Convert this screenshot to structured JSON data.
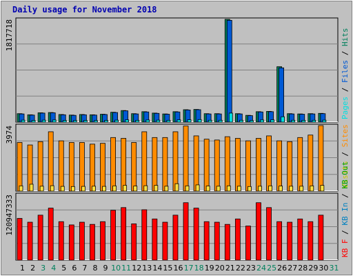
{
  "title": "Daily usage for November 2018",
  "colors": {
    "background": "#c0c0c0",
    "panel": "#c0c0c0",
    "grid": "#808080",
    "title": "#0000b0",
    "hits": "#00805c",
    "files": "#0059d4",
    "pages": "#00e0e0",
    "visits": "#ffe040",
    "sites": "#ff8c00",
    "kbin": "#0080c0",
    "kbout": "#00a000",
    "kbf": "#ff0000",
    "day_weekday": "#000000",
    "day_weekend": "#00805c"
  },
  "chart_data": [
    {
      "type": "bar",
      "panel": "hits-files-pages",
      "ymax_label": "1817718",
      "ylim": [
        0,
        1817718
      ],
      "legend": [
        {
          "text": "Pages",
          "color": "#00e0e0"
        },
        {
          "text": " / ",
          "color": "#000000"
        },
        {
          "text": "Files",
          "color": "#0059d4"
        },
        {
          "text": " / ",
          "color": "#000000"
        },
        {
          "text": "Hits",
          "color": "#00805c"
        }
      ],
      "categories": [
        "1",
        "2",
        "3",
        "4",
        "5",
        "6",
        "7",
        "8",
        "9",
        "10",
        "11",
        "12",
        "13",
        "14",
        "15",
        "16",
        "17",
        "18",
        "19",
        "20",
        "21",
        "22",
        "23",
        "24",
        "25",
        "26",
        "27",
        "28",
        "29",
        "30"
      ],
      "series": [
        {
          "name": "Hits",
          "color": "#00805c",
          "values": [
            150000,
            130000,
            165000,
            170000,
            135000,
            125000,
            135000,
            130000,
            140000,
            175000,
            205000,
            150000,
            185000,
            160000,
            145000,
            185000,
            220000,
            225000,
            150000,
            150000,
            1817718,
            150000,
            120000,
            185000,
            190000,
            980000,
            150000,
            145000,
            150000,
            155000
          ]
        },
        {
          "name": "Files",
          "color": "#0059d4",
          "values": [
            145000,
            125000,
            160000,
            165000,
            130000,
            120000,
            130000,
            125000,
            135000,
            170000,
            200000,
            145000,
            180000,
            155000,
            140000,
            180000,
            215000,
            220000,
            145000,
            145000,
            1800000,
            145000,
            115000,
            180000,
            185000,
            960000,
            145000,
            140000,
            145000,
            150000
          ]
        },
        {
          "name": "Pages",
          "color": "#00e0e0",
          "values": [
            35000,
            30000,
            35000,
            38000,
            30000,
            28000,
            30000,
            28000,
            30000,
            35000,
            40000,
            32000,
            38000,
            35000,
            32000,
            40000,
            42000,
            45000,
            33000,
            33000,
            160000,
            33000,
            28000,
            38000,
            40000,
            95000,
            33000,
            32000,
            33000,
            35000
          ]
        }
      ]
    },
    {
      "type": "bar",
      "panel": "sites-visits",
      "ymax_label": "3974",
      "ylim": [
        0,
        3974
      ],
      "legend": [
        {
          "text": "Visits",
          "color": "#c8c800"
        },
        {
          "text": " / ",
          "color": "#000000"
        },
        {
          "text": "Sites",
          "color": "#ff8c00"
        }
      ],
      "categories": [
        "1",
        "2",
        "3",
        "4",
        "5",
        "6",
        "7",
        "8",
        "9",
        "10",
        "11",
        "12",
        "13",
        "14",
        "15",
        "16",
        "17",
        "18",
        "19",
        "20",
        "21",
        "22",
        "23",
        "24",
        "25",
        "26",
        "27",
        "28",
        "29",
        "30"
      ],
      "series": [
        {
          "name": "Sites",
          "color": "#ff8c00",
          "values": [
            2950,
            2800,
            3000,
            3600,
            3050,
            2950,
            2950,
            2850,
            2900,
            3250,
            3200,
            2950,
            3600,
            3250,
            3250,
            3600,
            3950,
            3350,
            3150,
            3100,
            3300,
            3200,
            3050,
            3200,
            3350,
            3050,
            3000,
            3250,
            3400,
            3974
          ]
        },
        {
          "name": "Visits",
          "color": "#ffe040",
          "values": [
            320,
            420,
            300,
            330,
            290,
            280,
            290,
            300,
            290,
            320,
            350,
            310,
            330,
            350,
            300,
            450,
            320,
            380,
            310,
            300,
            320,
            300,
            280,
            300,
            320,
            310,
            300,
            300,
            320,
            350
          ]
        }
      ]
    },
    {
      "type": "bar",
      "panel": "kbytes",
      "ymax_label": "120947333",
      "ylim": [
        0,
        120947333
      ],
      "legend": [
        {
          "text": "KB F",
          "color": "#ff0000"
        },
        {
          "text": " / ",
          "color": "#000000"
        },
        {
          "text": "KB In",
          "color": "#0080c0"
        },
        {
          "text": " / ",
          "color": "#000000"
        },
        {
          "text": "KB Out",
          "color": "#00a000"
        }
      ],
      "categories": [
        "1",
        "2",
        "3",
        "4",
        "5",
        "6",
        "7",
        "8",
        "9",
        "10",
        "11",
        "12",
        "13",
        "14",
        "15",
        "16",
        "17",
        "18",
        "19",
        "20",
        "21",
        "22",
        "23",
        "24",
        "25",
        "26",
        "27",
        "28",
        "29",
        "30"
      ],
      "series": [
        {
          "name": "KB F",
          "color": "#ff0000",
          "values": [
            77000000,
            70000000,
            83000000,
            96000000,
            71000000,
            65000000,
            70000000,
            66000000,
            71000000,
            92000000,
            97000000,
            67000000,
            93000000,
            76000000,
            70000000,
            83000000,
            106000000,
            96000000,
            71000000,
            70000000,
            66000000,
            76000000,
            63000000,
            106000000,
            97000000,
            71000000,
            70000000,
            76000000,
            71000000,
            83000000
          ]
        }
      ]
    }
  ],
  "days": [
    {
      "label": "1",
      "weekend": false
    },
    {
      "label": "2",
      "weekend": false
    },
    {
      "label": "3",
      "weekend": true
    },
    {
      "label": "4",
      "weekend": true
    },
    {
      "label": "5",
      "weekend": false
    },
    {
      "label": "6",
      "weekend": false
    },
    {
      "label": "7",
      "weekend": false
    },
    {
      "label": "8",
      "weekend": false
    },
    {
      "label": "9",
      "weekend": false
    },
    {
      "label": "10",
      "weekend": true
    },
    {
      "label": "11",
      "weekend": true
    },
    {
      "label": "12",
      "weekend": false
    },
    {
      "label": "13",
      "weekend": false
    },
    {
      "label": "14",
      "weekend": false
    },
    {
      "label": "15",
      "weekend": false
    },
    {
      "label": "16",
      "weekend": false
    },
    {
      "label": "17",
      "weekend": true
    },
    {
      "label": "18",
      "weekend": true
    },
    {
      "label": "19",
      "weekend": false
    },
    {
      "label": "20",
      "weekend": false
    },
    {
      "label": "21",
      "weekend": false
    },
    {
      "label": "22",
      "weekend": false
    },
    {
      "label": "23",
      "weekend": false
    },
    {
      "label": "24",
      "weekend": true
    },
    {
      "label": "25",
      "weekend": true
    },
    {
      "label": "26",
      "weekend": false
    },
    {
      "label": "27",
      "weekend": false
    },
    {
      "label": "28",
      "weekend": false
    },
    {
      "label": "29",
      "weekend": false
    },
    {
      "label": "30",
      "weekend": false
    },
    {
      "label": "31",
      "weekend": true
    }
  ]
}
